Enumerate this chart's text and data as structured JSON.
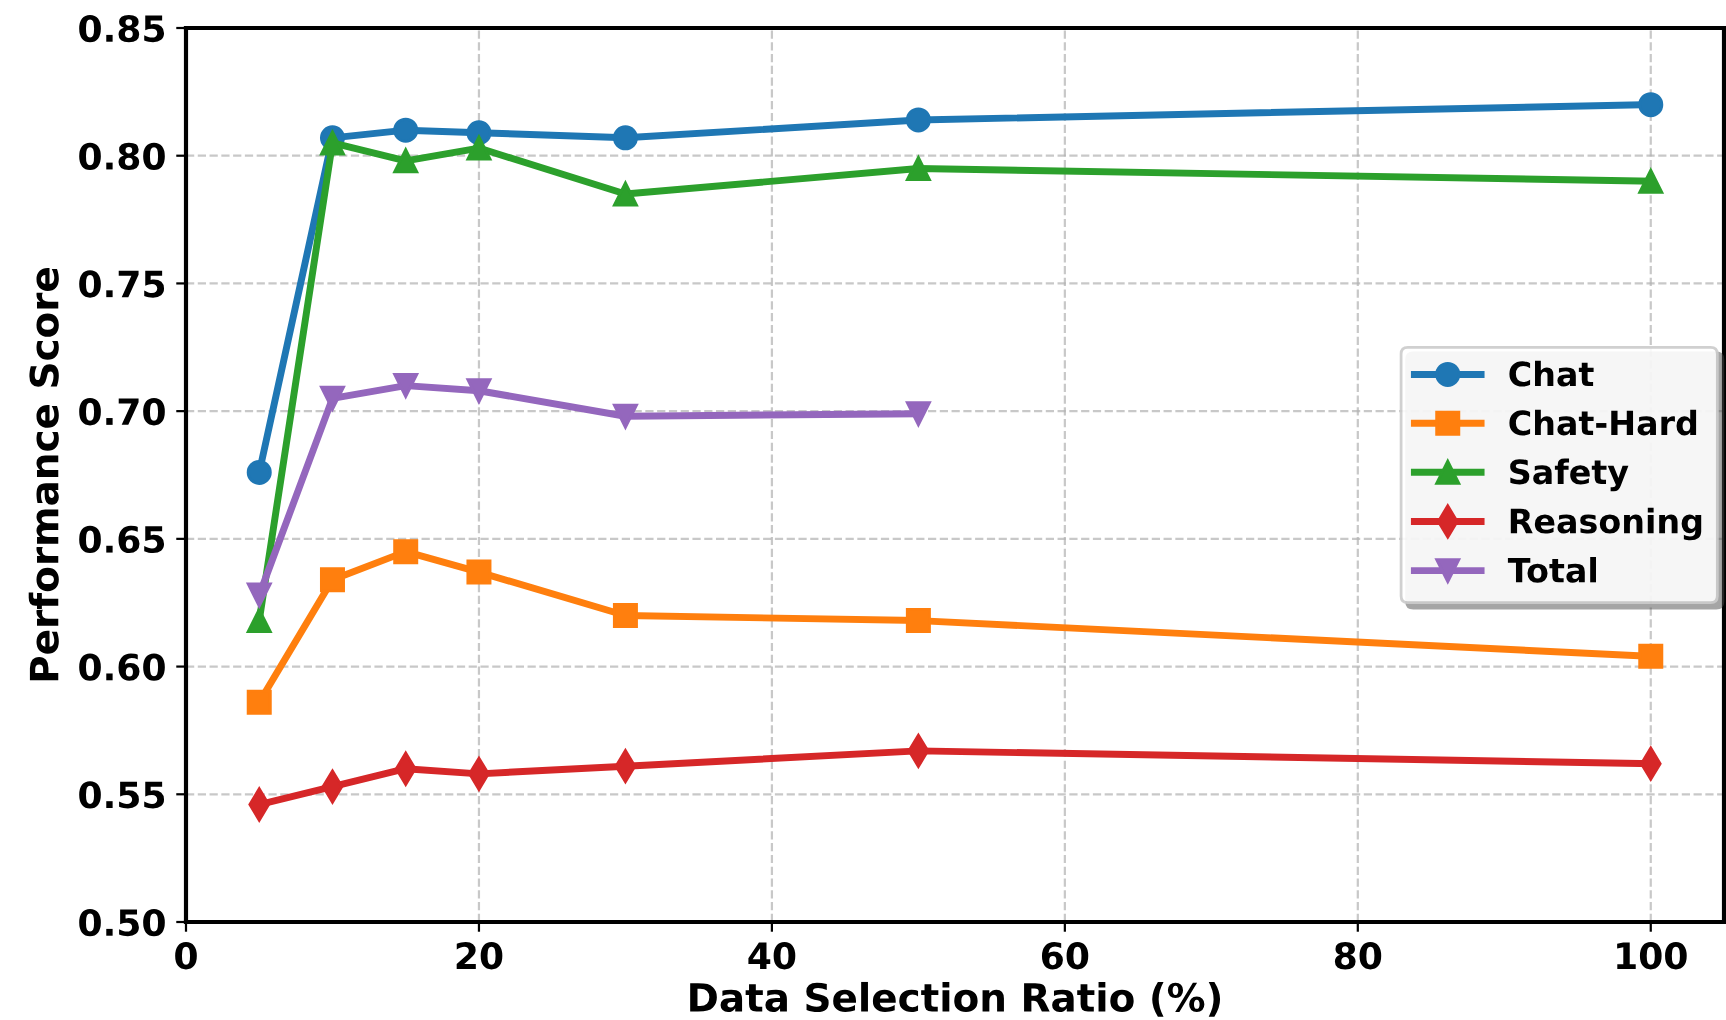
{
  "chart_data": {
    "type": "line",
    "xlabel": "Data Selection Ratio (%)",
    "ylabel": "Performance Score",
    "x": [
      5,
      10,
      15,
      20,
      30,
      50,
      100
    ],
    "series": [
      {
        "name": "Chat",
        "color": "#1f77b4",
        "marker": "circle",
        "values": [
          0.676,
          0.807,
          0.81,
          0.809,
          0.807,
          0.814,
          0.82
        ]
      },
      {
        "name": "Chat-Hard",
        "color": "#ff7f0e",
        "marker": "square",
        "values": [
          0.586,
          0.634,
          0.645,
          0.637,
          0.62,
          0.618,
          0.604
        ]
      },
      {
        "name": "Safety",
        "color": "#2ca02c",
        "marker": "triangle",
        "values": [
          0.618,
          0.805,
          0.798,
          0.803,
          0.785,
          0.795,
          0.79
        ]
      },
      {
        "name": "Reasoning",
        "color": "#d62728",
        "marker": "diamond",
        "values": [
          0.546,
          0.553,
          0.56,
          0.558,
          0.561,
          0.567,
          0.562
        ]
      },
      {
        "name": "Total",
        "color": "#9467bd",
        "marker": "triangle_down",
        "values": [
          0.628,
          0.705,
          0.71,
          0.708,
          0.698,
          0.699,
          null
        ]
      }
    ],
    "xlim": [
      0,
      105
    ],
    "xticks": [
      0,
      20,
      40,
      60,
      80,
      100
    ],
    "ylim": [
      0.5,
      0.85
    ],
    "yticks": [
      {
        "value": 0.5,
        "label": "0.50"
      },
      {
        "value": 0.55,
        "label": "0.55"
      },
      {
        "value": 0.6,
        "label": "0.60"
      },
      {
        "value": 0.65,
        "label": "0.65"
      },
      {
        "value": 0.7,
        "label": "0.70"
      },
      {
        "value": 0.75,
        "label": "0.75"
      },
      {
        "value": 0.8,
        "label": "0.80"
      },
      {
        "value": 0.85,
        "label": "0.85"
      }
    ],
    "grid": true,
    "legend": "center right",
    "line_style": "solid"
  }
}
